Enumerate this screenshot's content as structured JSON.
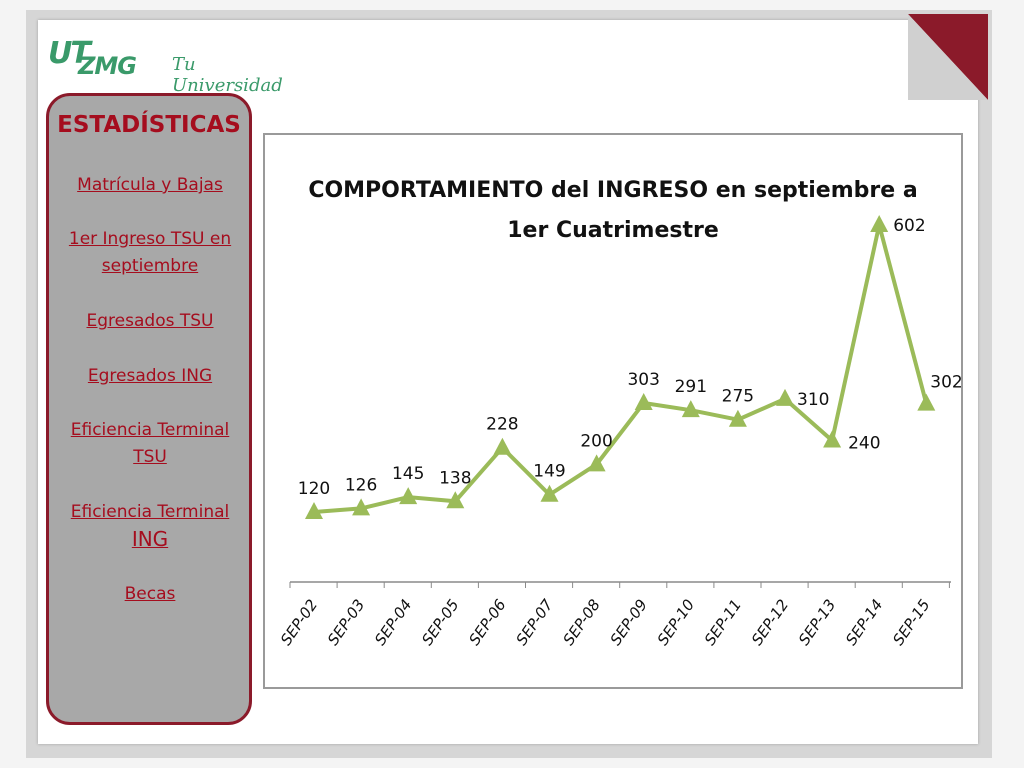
{
  "logo": {
    "ut": "UT",
    "zmg": "ZMG",
    "tagline": "Tu Universidad !"
  },
  "sidebar": {
    "title": "ESTADÍSTICAS",
    "items": [
      {
        "line1": "Matrícula y Bajas",
        "line2": ""
      },
      {
        "line1": "1er Ingreso TSU en",
        "line2": "septiembre"
      },
      {
        "line1": "Egresados TSU",
        "line2": ""
      },
      {
        "line1": "Egresados ING",
        "line2": ""
      },
      {
        "line1": "Eficiencia Terminal",
        "line2": "TSU"
      },
      {
        "line1": "Eficiencia Terminal",
        "line2": "ING"
      },
      {
        "line1": "Becas",
        "line2": ""
      }
    ]
  },
  "colors": {
    "accent": "#a50d1e",
    "sidebar_bg": "#a8a8a8",
    "line": "#9bbb59",
    "logo_green": "#3a9a6a"
  },
  "chart_data": {
    "type": "line",
    "title_line1": "COMPORTAMIENTO del  INGRESO en septiembre a",
    "title_line2": "1er Cuatrimestre",
    "categories": [
      "SEP-02",
      "SEP-03",
      "SEP-04",
      "SEP-05",
      "SEP-06",
      "SEP-07",
      "SEP-08",
      "SEP-09",
      "SEP-10",
      "SEP-11",
      "SEP-12",
      "SEP-13",
      "SEP-14",
      "SEP-15"
    ],
    "series": [
      {
        "values": [
          120,
          126,
          145,
          138,
          228,
          149,
          200,
          303,
          291,
          275,
          310,
          240,
          602,
          302
        ],
        "marker": "triangle"
      }
    ],
    "xlabel": "",
    "ylabel": "",
    "grid": false,
    "legend": "none",
    "data_labels": true
  }
}
